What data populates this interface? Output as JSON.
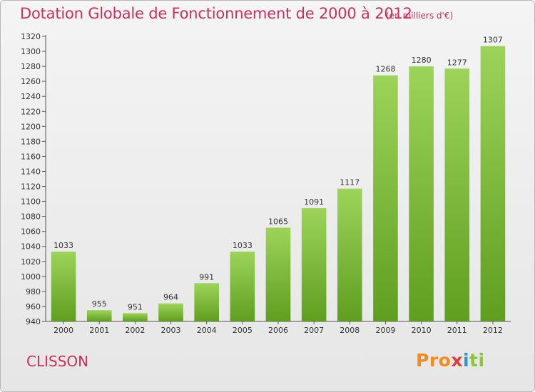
{
  "header": {
    "title": "Dotation Globale de Fonctionnement de 2000 à 2012",
    "subtitle": "(en milliers d'€)"
  },
  "footer": {
    "city": "CLISSON",
    "logo": "Proxiti"
  },
  "colors": {
    "title": "#c8325a",
    "bar_light": "#9cd45a",
    "bar_dark": "#5f9e1e"
  },
  "chart_data": {
    "type": "bar",
    "title": "Dotation Globale de Fonctionnement de 2000 à 2012",
    "subtitle": "(en milliers d'€)",
    "xlabel": "",
    "ylabel": "",
    "categories": [
      "2000",
      "2001",
      "2002",
      "2003",
      "2004",
      "2005",
      "2006",
      "2007",
      "2008",
      "2009",
      "2010",
      "2011",
      "2012"
    ],
    "values": [
      1033,
      955,
      951,
      964,
      991,
      1033,
      1065,
      1091,
      1117,
      1268,
      1280,
      1277,
      1307
    ],
    "ylim": [
      940,
      1320
    ],
    "yticks": [
      940,
      960,
      980,
      1000,
      1020,
      1040,
      1060,
      1080,
      1100,
      1120,
      1140,
      1160,
      1180,
      1200,
      1220,
      1240,
      1260,
      1280,
      1300,
      1320
    ],
    "grid": false,
    "legend": "none"
  }
}
